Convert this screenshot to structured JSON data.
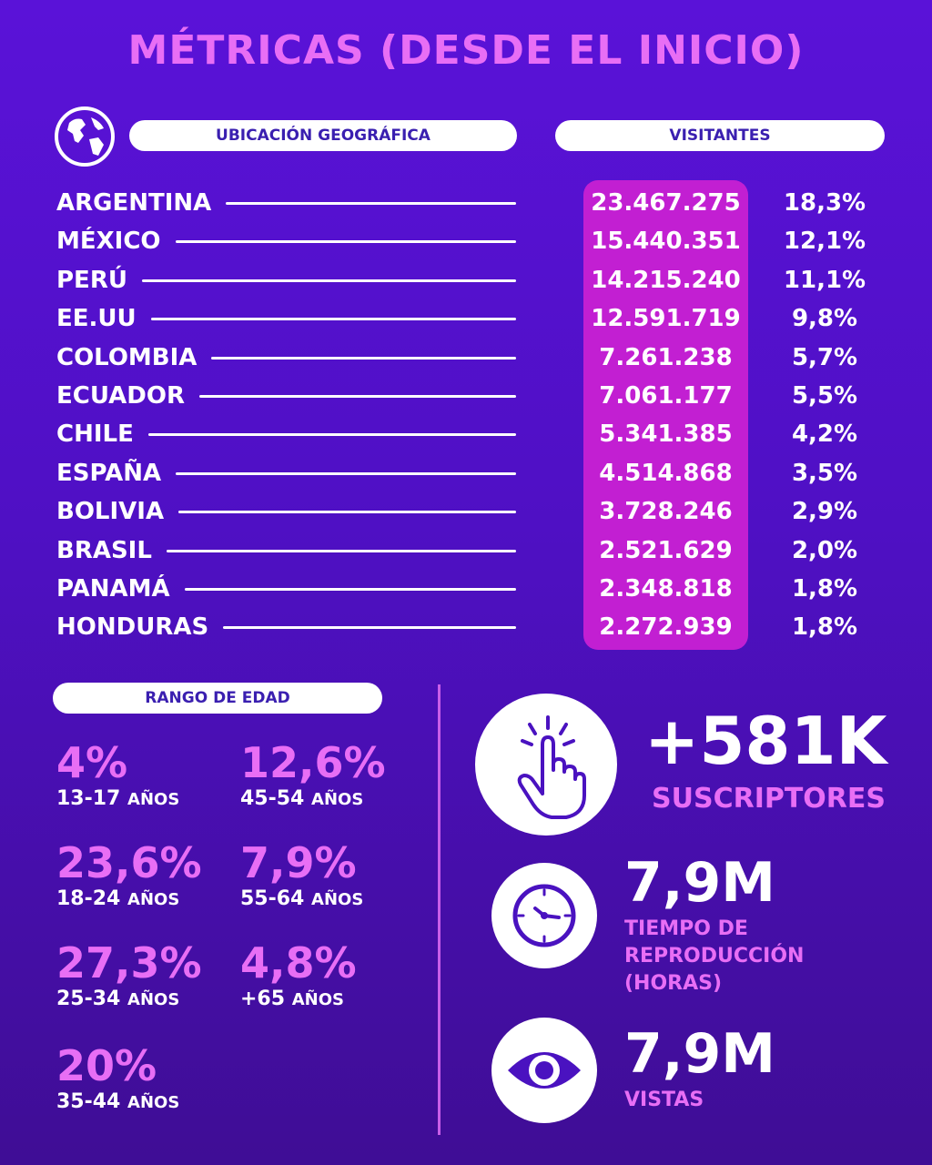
{
  "title": "MÉTRICAS (DESDE EL INICIO)",
  "headers": {
    "geo": "UBICACIÓN GEOGRÁFICA",
    "visitors": "VISITANTES",
    "age": "RANGO DE EDAD"
  },
  "countries": [
    {
      "name": "ARGENTINA",
      "visitors": "23.467.275",
      "pct": "18,3%"
    },
    {
      "name": "MÉXICO",
      "visitors": "15.440.351",
      "pct": "12,1%"
    },
    {
      "name": "PERÚ",
      "visitors": "14.215.240",
      "pct": "11,1%"
    },
    {
      "name": "EE.UU",
      "visitors": "12.591.719",
      "pct": "9,8%"
    },
    {
      "name": "COLOMBIA",
      "visitors": "7.261.238",
      "pct": "5,7%"
    },
    {
      "name": "ECUADOR",
      "visitors": "7.061.177",
      "pct": "5,5%"
    },
    {
      "name": "CHILE",
      "visitors": "5.341.385",
      "pct": "4,2%"
    },
    {
      "name": "ESPAÑA",
      "visitors": "4.514.868",
      "pct": "3,5%"
    },
    {
      "name": "BOLIVIA",
      "visitors": "3.728.246",
      "pct": "2,9%"
    },
    {
      "name": "BRASIL",
      "visitors": "2.521.629",
      "pct": "2,0%"
    },
    {
      "name": "PANAMÁ",
      "visitors": "2.348.818",
      "pct": "1,8%"
    },
    {
      "name": "HONDURAS",
      "visitors": "2.272.939",
      "pct": "1,8%"
    }
  ],
  "age_ranges": [
    {
      "pct": "4%",
      "range": "13-17",
      "suffix": "AÑOS"
    },
    {
      "pct": "23,6%",
      "range": "18-24",
      "suffix": "AÑOS"
    },
    {
      "pct": "27,3%",
      "range": "25-34",
      "suffix": "AÑOS"
    },
    {
      "pct": "20%",
      "range": "35-44",
      "suffix": "AÑOS"
    },
    {
      "pct": "12,6%",
      "range": "45-54",
      "suffix": "AÑOS"
    },
    {
      "pct": "7,9%",
      "range": "55-64",
      "suffix": "AÑOS"
    },
    {
      "pct": "4,8%",
      "range": "+65",
      "suffix": "AÑOS"
    }
  ],
  "stats": {
    "subscribers": {
      "value": "+581K",
      "label": "SUSCRIPTORES",
      "icon": "click-hand-icon"
    },
    "watch_time": {
      "value": "7,9M",
      "label_lines": [
        "TIEMPO DE",
        "REPRODUCCIÓN",
        "(HORAS)"
      ],
      "icon": "clock-icon"
    },
    "views": {
      "value": "7,9M",
      "label": "VISTAS",
      "icon": "eye-icon"
    }
  },
  "colors": {
    "background_top": "#5a12d8",
    "background_bottom": "#3f0d95",
    "accent_pink": "#e86ef5",
    "visitors_box": "#c21fd2",
    "pill_text": "#3a1fb0"
  }
}
